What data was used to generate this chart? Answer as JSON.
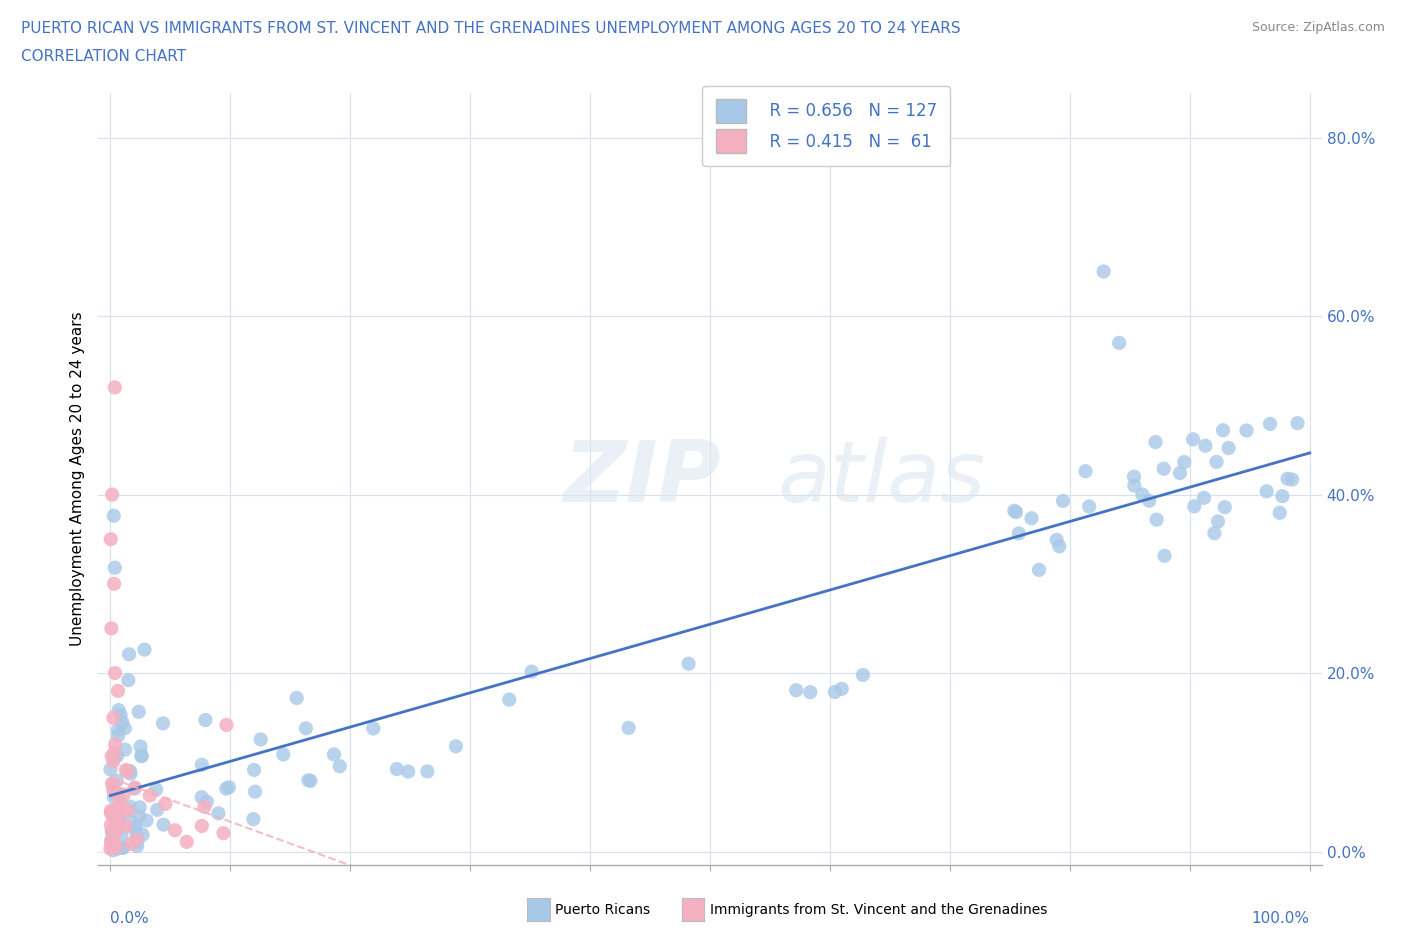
{
  "title_line1": "PUERTO RICAN VS IMMIGRANTS FROM ST. VINCENT AND THE GRENADINES UNEMPLOYMENT AMONG AGES 20 TO 24 YEARS",
  "title_line2": "CORRELATION CHART",
  "source": "Source: ZipAtlas.com",
  "ylabel": "Unemployment Among Ages 20 to 24 years",
  "blue_R": 0.656,
  "blue_N": 127,
  "pink_R": 0.415,
  "pink_N": 61,
  "blue_scatter_color": "#a8c8e8",
  "pink_scatter_color": "#f4b0c0",
  "blue_line_color": "#4472c4",
  "pink_line_color": "#f4b0c0",
  "blue_label": "Puerto Ricans",
  "pink_label": "Immigrants from St. Vincent and the Grenadines",
  "title_color": "#4472c4",
  "tick_color": "#4472c4",
  "grid_color": "#d8e0f0",
  "yaxis_ticks": [
    0.0,
    0.2,
    0.4,
    0.6,
    0.8
  ],
  "yaxis_labels": [
    "0.0%",
    "20.0%",
    "40.0%",
    "60.0%",
    "80.0%"
  ],
  "xmin": 0.0,
  "xmax": 1.0,
  "ymin": 0.0,
  "ymax": 0.85
}
